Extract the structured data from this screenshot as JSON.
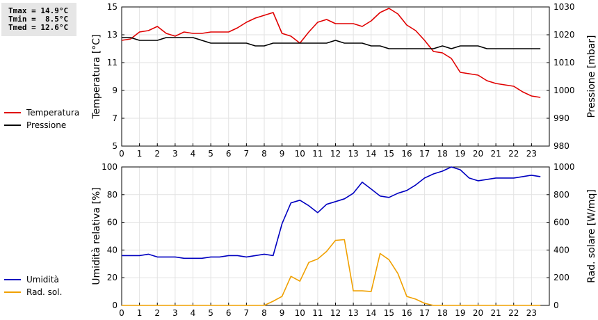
{
  "stats": {
    "tmax": "Tmax = 14.9°C",
    "tmin": "Tmin =  8.5°C",
    "tmed": "Tmed = 12.6°C"
  },
  "colors": {
    "temperature": "#e00000",
    "pressure": "#000000",
    "humidity": "#0000c0",
    "radiation": "#f0a000"
  },
  "chart_data": [
    {
      "type": "line",
      "x_ticks": [
        0,
        1,
        2,
        3,
        4,
        5,
        6,
        7,
        8,
        9,
        10,
        11,
        12,
        13,
        14,
        15,
        16,
        17,
        18,
        19,
        20,
        21,
        22,
        23
      ],
      "xlim": [
        0,
        24
      ],
      "left_axis": {
        "label": "Temperatura [°C]",
        "ylim": [
          5,
          15
        ],
        "ticks": [
          5,
          7,
          9,
          11,
          13,
          15
        ]
      },
      "right_axis": {
        "label": "Pressione [mbar]",
        "ylim": [
          980,
          1030
        ],
        "ticks": [
          980,
          990,
          1000,
          1010,
          1020,
          1030
        ]
      },
      "grid": true,
      "legend_position": "left",
      "series": [
        {
          "name": "Temperatura",
          "axis": "left",
          "color": "#e00000",
          "x": [
            0,
            0.5,
            1,
            1.5,
            2,
            2.5,
            3,
            3.5,
            4,
            4.5,
            5,
            5.5,
            6,
            6.5,
            7,
            7.5,
            8,
            8.5,
            9,
            9.5,
            10,
            10.5,
            11,
            11.5,
            12,
            12.5,
            13,
            13.5,
            14,
            14.5,
            15,
            15.5,
            16,
            16.5,
            17,
            17.5,
            18,
            18.5,
            19,
            19.5,
            20,
            20.5,
            21,
            21.5,
            22,
            22.5,
            23,
            23.5
          ],
          "y": [
            12.6,
            12.7,
            13.2,
            13.3,
            13.6,
            13.1,
            12.9,
            13.2,
            13.1,
            13.1,
            13.2,
            13.2,
            13.2,
            13.5,
            13.9,
            14.2,
            14.4,
            14.6,
            13.1,
            12.9,
            12.4,
            13.2,
            13.9,
            14.1,
            13.8,
            13.8,
            13.8,
            13.6,
            14.0,
            14.6,
            14.9,
            14.5,
            13.7,
            13.3,
            12.6,
            11.8,
            11.7,
            11.3,
            10.3,
            10.2,
            10.1,
            9.7,
            9.5,
            9.4,
            9.3,
            8.9,
            8.6,
            8.5
          ]
        },
        {
          "name": "Pressione",
          "axis": "right",
          "color": "#000000",
          "x": [
            0,
            0.5,
            1,
            1.5,
            2,
            2.5,
            3,
            3.5,
            4,
            4.5,
            5,
            5.5,
            6,
            6.5,
            7,
            7.5,
            8,
            8.5,
            9,
            9.5,
            10,
            10.5,
            11,
            11.5,
            12,
            12.5,
            13,
            13.5,
            14,
            14.5,
            15,
            15.5,
            16,
            16.5,
            17,
            17.5,
            18,
            18.5,
            19,
            19.5,
            20,
            20.5,
            21,
            21.5,
            22,
            22.5,
            23,
            23.5
          ],
          "y": [
            1019,
            1019,
            1018,
            1018,
            1018,
            1019,
            1019,
            1019,
            1019,
            1018,
            1017,
            1017,
            1017,
            1017,
            1017,
            1016,
            1016,
            1017,
            1017,
            1017,
            1017,
            1017,
            1017,
            1017,
            1018,
            1017,
            1017,
            1017,
            1016,
            1016,
            1015,
            1015,
            1015,
            1015,
            1015,
            1015,
            1016,
            1015,
            1016,
            1016,
            1016,
            1015,
            1015,
            1015,
            1015,
            1015,
            1015,
            1015
          ]
        }
      ]
    },
    {
      "type": "line",
      "x_ticks": [
        0,
        1,
        2,
        3,
        4,
        5,
        6,
        7,
        8,
        9,
        10,
        11,
        12,
        13,
        14,
        15,
        16,
        17,
        18,
        19,
        20,
        21,
        22,
        23
      ],
      "xlim": [
        0,
        24
      ],
      "left_axis": {
        "label": "Umidità relativa [%]",
        "ylim": [
          0,
          100
        ],
        "ticks": [
          0,
          20,
          40,
          60,
          80,
          100
        ]
      },
      "right_axis": {
        "label": "Rad. solare [W/mq]",
        "ylim": [
          0,
          1000
        ],
        "ticks": [
          0,
          200,
          400,
          600,
          800,
          1000
        ]
      },
      "grid": true,
      "legend_position": "left",
      "series": [
        {
          "name": "Umidità",
          "axis": "left",
          "color": "#0000c0",
          "x": [
            0,
            0.5,
            1,
            1.5,
            2,
            2.5,
            3,
            3.5,
            4,
            4.5,
            5,
            5.5,
            6,
            6.5,
            7,
            7.5,
            8,
            8.5,
            9,
            9.5,
            10,
            10.5,
            11,
            11.5,
            12,
            12.5,
            13,
            13.5,
            14,
            14.5,
            15,
            15.5,
            16,
            16.5,
            17,
            17.5,
            18,
            18.5,
            19,
            19.5,
            20,
            20.5,
            21,
            21.5,
            22,
            22.5,
            23,
            23.5
          ],
          "y": [
            36,
            36,
            36,
            37,
            35,
            35,
            35,
            34,
            34,
            34,
            35,
            35,
            36,
            36,
            35,
            36,
            37,
            36,
            59,
            74,
            76,
            72,
            67,
            73,
            75,
            77,
            81,
            89,
            84,
            79,
            78,
            81,
            83,
            87,
            92,
            95,
            97,
            100,
            98,
            92,
            90,
            91,
            92,
            92,
            92,
            93,
            94,
            93
          ]
        },
        {
          "name": "Rad. sol.",
          "axis": "right",
          "color": "#f0a000",
          "x": [
            0,
            0.5,
            1,
            1.5,
            2,
            2.5,
            3,
            3.5,
            4,
            4.5,
            5,
            5.5,
            6,
            6.5,
            7,
            7.5,
            8,
            8.5,
            9,
            9.5,
            10,
            10.5,
            11,
            11.5,
            12,
            12.5,
            13,
            13.5,
            14,
            14.5,
            15,
            15.5,
            16,
            16.5,
            17,
            17.5,
            18,
            18.5,
            19,
            19.5,
            20,
            20.5,
            21,
            21.5,
            22,
            22.5,
            23,
            23.5
          ],
          "y": [
            0,
            0,
            0,
            0,
            0,
            0,
            0,
            0,
            0,
            0,
            0,
            0,
            0,
            0,
            0,
            0,
            0,
            30,
            65,
            210,
            175,
            310,
            335,
            390,
            470,
            475,
            105,
            105,
            100,
            375,
            330,
            230,
            65,
            45,
            15,
            0,
            0,
            0,
            0,
            0,
            0,
            0,
            0,
            0,
            0,
            0,
            0,
            0
          ]
        }
      ]
    }
  ]
}
